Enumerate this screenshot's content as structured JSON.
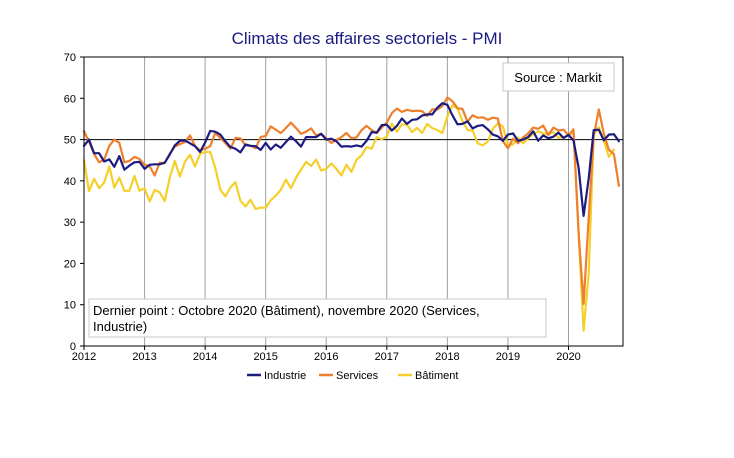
{
  "chart_data": {
    "type": "line",
    "title": "Climats des affaires sectoriels - PMI",
    "source_label": "Source : Markit",
    "note_lines": [
      "Dernier point : Octobre 2020 (Bâtiment), novembre 2020 (Services,",
      "Industrie)"
    ],
    "ylim": [
      0,
      70
    ],
    "y_ticks": [
      0,
      10,
      20,
      30,
      40,
      50,
      60,
      70
    ],
    "x_range": [
      2012,
      2020.9
    ],
    "x_ticks": [
      2012,
      2013,
      2014,
      2015,
      2016,
      2017,
      2018,
      2019,
      2020
    ],
    "x_tick_labels": [
      "2012",
      "2013",
      "2014",
      "2015",
      "2016",
      "2017",
      "2018",
      "2019",
      "2020"
    ],
    "reference_line": 50,
    "grid": "vertical",
    "legend_position": "bottom",
    "series": [
      {
        "name": "Industrie",
        "color": "#1c1c80",
        "x": [
          2012,
          2012.083,
          2012.167,
          2012.25,
          2012.333,
          2012.417,
          2012.5,
          2012.583,
          2012.667,
          2012.75,
          2012.833,
          2012.917,
          2013,
          2013.083,
          2013.167,
          2013.25,
          2013.333,
          2013.417,
          2013.5,
          2013.583,
          2013.667,
          2013.75,
          2013.833,
          2013.917,
          2014,
          2014.083,
          2014.167,
          2014.25,
          2014.333,
          2014.417,
          2014.5,
          2014.583,
          2014.667,
          2014.75,
          2014.833,
          2014.917,
          2015,
          2015.083,
          2015.167,
          2015.25,
          2015.333,
          2015.417,
          2015.5,
          2015.583,
          2015.667,
          2015.75,
          2015.833,
          2015.917,
          2016,
          2016.083,
          2016.167,
          2016.25,
          2016.333,
          2016.417,
          2016.5,
          2016.583,
          2016.667,
          2016.75,
          2016.833,
          2016.917,
          2017,
          2017.083,
          2017.167,
          2017.25,
          2017.333,
          2017.417,
          2017.5,
          2017.583,
          2017.667,
          2017.75,
          2017.833,
          2017.917,
          2018,
          2018.083,
          2018.167,
          2018.25,
          2018.333,
          2018.417,
          2018.5,
          2018.583,
          2018.667,
          2018.75,
          2018.833,
          2018.917,
          2019,
          2019.083,
          2019.167,
          2019.25,
          2019.333,
          2019.417,
          2019.5,
          2019.583,
          2019.667,
          2019.75,
          2019.833,
          2019.917,
          2020,
          2020.083,
          2020.167,
          2020.25,
          2020.333,
          2020.417,
          2020.5,
          2020.583,
          2020.667,
          2020.75,
          2020.833
        ],
        "values": [
          48.5,
          50,
          46.7,
          46.7,
          44.7,
          45.2,
          43.4,
          46,
          42.7,
          43.7,
          44.5,
          44.6,
          42.9,
          43.9,
          44,
          44,
          44.4,
          46.4,
          48.6,
          49.7,
          49.8,
          49.1,
          48.4,
          47,
          49.3,
          52.1,
          51.9,
          51.2,
          49.6,
          48.2,
          47.8,
          46.9,
          48.8,
          48.5,
          48.4,
          47.5,
          49.2,
          47.6,
          48.8,
          48,
          49.4,
          50.7,
          49.6,
          48.3,
          50.6,
          50.6,
          50.6,
          51.4,
          50,
          50.2,
          49.6,
          48.3,
          48.4,
          48.3,
          48.6,
          48.3,
          49.7,
          51.8,
          51.7,
          53.5,
          53.6,
          52.2,
          53.3,
          55.1,
          53.8,
          54.8,
          54.9,
          55.8,
          56.1,
          56.1,
          57.7,
          58.8,
          58.4,
          55.9,
          53.7,
          53.8,
          54.4,
          52.7,
          53.3,
          53.5,
          52.5,
          51.2,
          50.8,
          49.7,
          51.2,
          51.5,
          49.7,
          50,
          50.6,
          52,
          49.7,
          51,
          50.3,
          50.7,
          51.7,
          50.4,
          51.1,
          49.8,
          43.2,
          31.5,
          40.6,
          52.3,
          52.4,
          49.8,
          51.2,
          51.3,
          49.6
        ]
      },
      {
        "name": "Services",
        "color": "#ee7f2d",
        "x": [
          2012,
          2012.083,
          2012.167,
          2012.25,
          2012.333,
          2012.417,
          2012.5,
          2012.583,
          2012.667,
          2012.75,
          2012.833,
          2012.917,
          2013,
          2013.083,
          2013.167,
          2013.25,
          2013.333,
          2013.417,
          2013.5,
          2013.583,
          2013.667,
          2013.75,
          2013.833,
          2013.917,
          2014,
          2014.083,
          2014.167,
          2014.25,
          2014.333,
          2014.417,
          2014.5,
          2014.583,
          2014.667,
          2014.75,
          2014.833,
          2014.917,
          2015,
          2015.083,
          2015.167,
          2015.25,
          2015.333,
          2015.417,
          2015.5,
          2015.583,
          2015.667,
          2015.75,
          2015.833,
          2015.917,
          2016,
          2016.083,
          2016.167,
          2016.25,
          2016.333,
          2016.417,
          2016.5,
          2016.583,
          2016.667,
          2016.75,
          2016.833,
          2016.917,
          2017,
          2017.083,
          2017.167,
          2017.25,
          2017.333,
          2017.417,
          2017.5,
          2017.583,
          2017.667,
          2017.75,
          2017.833,
          2017.917,
          2018,
          2018.083,
          2018.167,
          2018.25,
          2018.333,
          2018.417,
          2018.5,
          2018.583,
          2018.667,
          2018.75,
          2018.833,
          2018.917,
          2019,
          2019.083,
          2019.167,
          2019.25,
          2019.333,
          2019.417,
          2019.5,
          2019.583,
          2019.667,
          2019.75,
          2019.833,
          2019.917,
          2020,
          2020.083,
          2020.167,
          2020.25,
          2020.333,
          2020.417,
          2020.5,
          2020.583,
          2020.667,
          2020.75,
          2020.833
        ],
        "values": [
          52,
          49.5,
          46.5,
          44.5,
          45.1,
          48.5,
          50,
          49.2,
          44.5,
          44.8,
          45.8,
          45.3,
          43.9,
          43.6,
          41.3,
          44.4,
          44.3,
          46.6,
          48.3,
          48.9,
          49.4,
          51,
          48.4,
          47.4,
          47.8,
          48.4,
          51.6,
          50.4,
          49.2,
          47.8,
          50.4,
          50.3,
          48.6,
          48.5,
          47.9,
          50.6,
          50.9,
          53.2,
          52.4,
          51.6,
          52.8,
          54.1,
          52.8,
          51.4,
          51.9,
          52.7,
          51,
          51.4,
          50.3,
          49.2,
          49.9,
          50.6,
          51.6,
          50.3,
          50.5,
          52.3,
          53.3,
          52.3,
          51.6,
          52.9,
          54.1,
          56.4,
          57.5,
          56.7,
          57.2,
          56.9,
          57,
          56.9,
          55.7,
          57.3,
          57.3,
          58.1,
          60.2,
          59.3,
          57.6,
          57.4,
          54.3,
          55.9,
          55.3,
          55.4,
          54.8,
          55.3,
          55.1,
          49.6,
          47.9,
          50.2,
          49.1,
          50.5,
          51.5,
          52.9,
          52.6,
          53.4,
          51.1,
          52.9,
          52.2,
          52.4,
          51,
          52.5,
          27.4,
          10.2,
          31.1,
          50.7,
          57.3,
          51.5,
          47.5,
          46.5,
          38.8
        ]
      },
      {
        "name": "Bâtiment",
        "color": "#f5cf2a",
        "x": [
          2012,
          2012.083,
          2012.167,
          2012.25,
          2012.333,
          2012.417,
          2012.5,
          2012.583,
          2012.667,
          2012.75,
          2012.833,
          2012.917,
          2013,
          2013.083,
          2013.167,
          2013.25,
          2013.333,
          2013.417,
          2013.5,
          2013.583,
          2013.667,
          2013.75,
          2013.833,
          2013.917,
          2014,
          2014.083,
          2014.167,
          2014.25,
          2014.333,
          2014.417,
          2014.5,
          2014.583,
          2014.667,
          2014.75,
          2014.833,
          2014.917,
          2015,
          2015.083,
          2015.167,
          2015.25,
          2015.333,
          2015.417,
          2015.5,
          2015.583,
          2015.667,
          2015.75,
          2015.833,
          2015.917,
          2016,
          2016.083,
          2016.167,
          2016.25,
          2016.333,
          2016.417,
          2016.5,
          2016.583,
          2016.667,
          2016.75,
          2016.833,
          2016.917,
          2017,
          2017.083,
          2017.167,
          2017.25,
          2017.333,
          2017.417,
          2017.5,
          2017.583,
          2017.667,
          2017.75,
          2017.833,
          2017.917,
          2018,
          2018.083,
          2018.167,
          2018.25,
          2018.333,
          2018.417,
          2018.5,
          2018.583,
          2018.667,
          2018.75,
          2018.833,
          2018.917,
          2019,
          2019.083,
          2019.167,
          2019.25,
          2019.333,
          2019.417,
          2019.5,
          2019.583,
          2019.667,
          2019.75,
          2019.833,
          2019.917,
          2020,
          2020.083,
          2020.167,
          2020.25,
          2020.333,
          2020.417,
          2020.5,
          2020.583,
          2020.667,
          2020.75
        ],
        "values": [
          45,
          37.5,
          40.5,
          38.2,
          39.6,
          43.5,
          38.4,
          40.8,
          37.6,
          37.6,
          41.2,
          37.6,
          38.2,
          35,
          37.8,
          37.2,
          35.1,
          40.8,
          44.8,
          41,
          44.7,
          46.3,
          43.5,
          46.5,
          47,
          47,
          43.2,
          37.9,
          36.2,
          38.4,
          39.7,
          35.2,
          33.8,
          35.4,
          33.2,
          33.5,
          33.5,
          35.3,
          36.4,
          37.8,
          40.3,
          38.2,
          40.8,
          42.7,
          44.6,
          43.6,
          45.2,
          42.5,
          42.9,
          44.2,
          42.9,
          41.3,
          43.9,
          42.2,
          45.1,
          46.2,
          48.2,
          47.8,
          50.6,
          50.1,
          50.7,
          53.9,
          51.9,
          53.7,
          53.6,
          51.8,
          52.8,
          51.6,
          53.8,
          52.8,
          52.3,
          51.6,
          55.6,
          58.3,
          57.5,
          54.5,
          52.3,
          52.2,
          49.1,
          48.6,
          49.5,
          52.6,
          53.9,
          53.2,
          48.7,
          48.8,
          50.5,
          49.1,
          50.3,
          51.3,
          52,
          51.5,
          51.3,
          51.8,
          50.4,
          50.6,
          51,
          51.8,
          27.5,
          3.7,
          17.6,
          51.2,
          53,
          49.7,
          45.8,
          47.6
        ]
      }
    ]
  }
}
